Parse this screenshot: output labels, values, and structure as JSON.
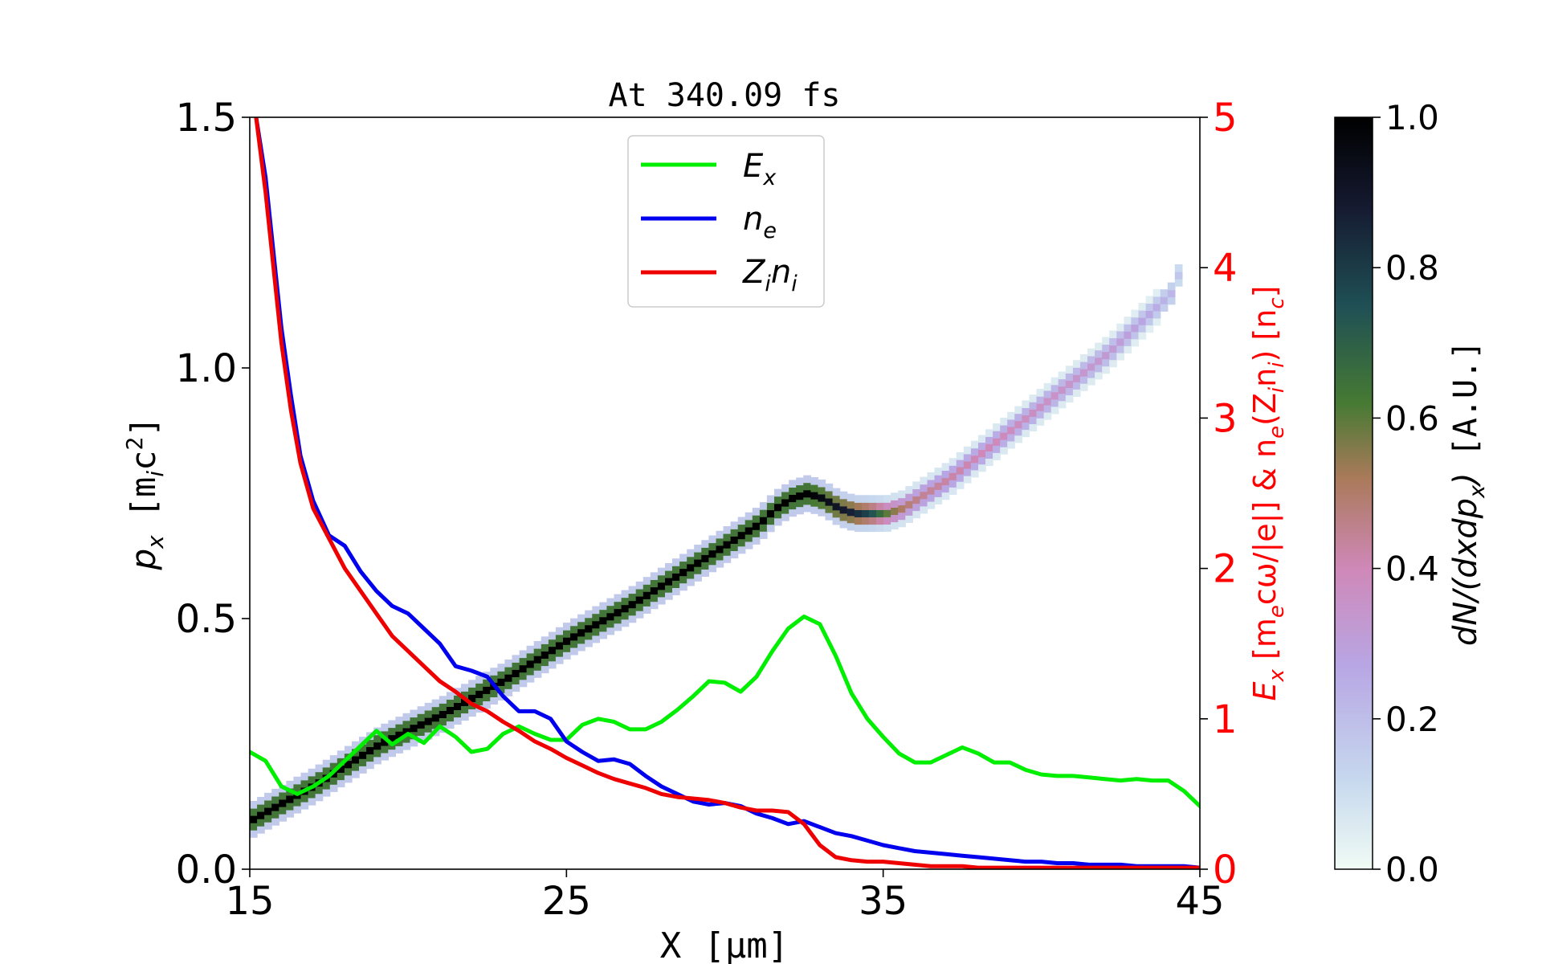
{
  "chart_data": {
    "type": "heatmap",
    "title": "At 340.09 fs",
    "xlabel": "X",
    "xlabel_unit": "[μm]",
    "ylabel": "p",
    "ylabel_sub": "x",
    "ylabel_unit": "[m",
    "ylabel_unit_sub": "i",
    "ylabel_unit_end": "c",
    "ylabel_unit_sup": "2",
    "ylabel_unit_close": "]",
    "y2label": "E_x [m_e cω/|e|] & n_e(Z_i n_i) [n_c]",
    "y2label_parts": [
      "E",
      "x",
      " [m",
      "e",
      "cω/|e|]  &  n",
      "e",
      "(Z",
      "i",
      "n",
      "i",
      ")  [n",
      "c",
      "]"
    ],
    "colorbar_label_parts": [
      "dN/(dxdp",
      "x",
      ")",
      "[A.U.]"
    ],
    "xlim": [
      15,
      45
    ],
    "ylim": [
      0,
      1.5
    ],
    "y2lim": [
      0,
      5
    ],
    "clim": [
      0,
      1
    ],
    "xticks": [
      "15",
      "25",
      "35",
      "45"
    ],
    "xtick_values": [
      15,
      25,
      35,
      45
    ],
    "yticks": [
      "0.0",
      "0.5",
      "1.0",
      "1.5"
    ],
    "ytick_values": [
      0,
      0.5,
      1.0,
      1.5
    ],
    "y2ticks": [
      "0",
      "1",
      "2",
      "3",
      "4",
      "5"
    ],
    "y2tick_values": [
      0,
      1,
      2,
      3,
      4,
      5
    ],
    "cticks": [
      "0.0",
      "0.2",
      "0.4",
      "0.6",
      "0.8",
      "1.0"
    ],
    "ctick_values": [
      0,
      0.2,
      0.4,
      0.6,
      0.8,
      1.0
    ],
    "grid": false,
    "legend_position": "top-center",
    "colors": {
      "Ex": "#00ee00",
      "ne": "#0000ee",
      "Zini": "#ee0000",
      "right_axis": "#ff0000",
      "colormap": [
        "#f0fbf4",
        "#c6d8ee",
        "#b8a6e4",
        "#cf88b8",
        "#aa7a5a",
        "#467a33",
        "#1f4f55",
        "#151a30",
        "#000000"
      ]
    },
    "legend": [
      {
        "key": "Ex",
        "name": "E",
        "sub": "x"
      },
      {
        "key": "ne",
        "name": "n",
        "sub": "e"
      },
      {
        "key": "Zini",
        "name": "Z",
        "sub": "i",
        "name2": "n",
        "sub2": "i"
      }
    ],
    "series": [
      {
        "key": "Ex",
        "axis": "right",
        "x": [
          15,
          15.5,
          16,
          16.5,
          17,
          17.5,
          18,
          18.5,
          19,
          19.5,
          20,
          20.5,
          21,
          21.5,
          22,
          22.5,
          23,
          23.5,
          24,
          24.5,
          25,
          25.5,
          26,
          26.5,
          27,
          27.5,
          28,
          28.5,
          29,
          29.5,
          30,
          30.5,
          31,
          31.5,
          32,
          32.5,
          33,
          33.5,
          34,
          34.5,
          35,
          35.5,
          36,
          36.5,
          37,
          37.5,
          38,
          38.5,
          39,
          39.5,
          40,
          40.5,
          41,
          41.5,
          42,
          42.5,
          43,
          43.5,
          44,
          44.5,
          45
        ],
        "y": [
          0.78,
          0.72,
          0.55,
          0.5,
          0.55,
          0.62,
          0.72,
          0.82,
          0.92,
          0.83,
          0.9,
          0.84,
          0.95,
          0.88,
          0.78,
          0.8,
          0.9,
          0.95,
          0.9,
          0.86,
          0.86,
          0.96,
          1.0,
          0.98,
          0.93,
          0.93,
          0.98,
          1.06,
          1.15,
          1.25,
          1.24,
          1.18,
          1.28,
          1.45,
          1.6,
          1.68,
          1.63,
          1.42,
          1.17,
          1.0,
          0.88,
          0.77,
          0.71,
          0.71,
          0.76,
          0.81,
          0.77,
          0.71,
          0.71,
          0.66,
          0.63,
          0.62,
          0.62,
          0.61,
          0.6,
          0.59,
          0.6,
          0.59,
          0.59,
          0.52,
          0.42
        ]
      },
      {
        "key": "ne",
        "axis": "right",
        "x": [
          15.2,
          15.5,
          15.8,
          16,
          16.3,
          16.6,
          17,
          17.5,
          18,
          18.5,
          19,
          19.5,
          20,
          20.5,
          21,
          21.5,
          22,
          22.5,
          23,
          23.5,
          24,
          24.5,
          25,
          25.5,
          26,
          26.5,
          27,
          27.5,
          28,
          28.5,
          29,
          29.5,
          30,
          30.5,
          31,
          31.5,
          32,
          32.5,
          33,
          33.5,
          34,
          34.5,
          35,
          35.5,
          36,
          36.5,
          37,
          37.5,
          38,
          38.5,
          39,
          39.5,
          40,
          40.5,
          41,
          41.5,
          42,
          42.5,
          43,
          43.5,
          44,
          44.5,
          45
        ],
        "y": [
          5.0,
          4.6,
          4.0,
          3.6,
          3.15,
          2.75,
          2.45,
          2.22,
          2.15,
          1.98,
          1.85,
          1.75,
          1.7,
          1.6,
          1.5,
          1.35,
          1.32,
          1.28,
          1.15,
          1.05,
          1.05,
          1.0,
          0.85,
          0.78,
          0.72,
          0.73,
          0.7,
          0.62,
          0.55,
          0.5,
          0.45,
          0.43,
          0.44,
          0.42,
          0.37,
          0.34,
          0.3,
          0.32,
          0.28,
          0.24,
          0.22,
          0.19,
          0.16,
          0.14,
          0.12,
          0.11,
          0.1,
          0.09,
          0.08,
          0.07,
          0.06,
          0.05,
          0.05,
          0.04,
          0.04,
          0.03,
          0.03,
          0.03,
          0.02,
          0.02,
          0.02,
          0.02,
          0.01
        ]
      },
      {
        "key": "Zini",
        "axis": "right",
        "x": [
          15.2,
          15.5,
          15.8,
          16,
          16.3,
          16.6,
          17,
          17.5,
          18,
          18.5,
          19,
          19.5,
          20,
          20.5,
          21,
          21.5,
          22,
          22.5,
          23,
          23.5,
          24,
          24.5,
          25,
          25.5,
          26,
          26.5,
          27,
          27.5,
          28,
          28.5,
          29,
          29.5,
          30,
          30.5,
          31,
          31.5,
          32,
          32.5,
          33,
          33.5,
          34,
          34.5,
          35,
          35.5,
          36,
          36.5,
          37,
          37.5,
          38,
          38.5,
          39,
          39.5,
          40,
          41,
          42,
          43,
          44,
          45
        ],
        "y": [
          5.0,
          4.5,
          3.9,
          3.5,
          3.05,
          2.7,
          2.4,
          2.2,
          2.0,
          1.85,
          1.7,
          1.55,
          1.45,
          1.35,
          1.25,
          1.18,
          1.1,
          1.05,
          0.98,
          0.92,
          0.85,
          0.8,
          0.74,
          0.69,
          0.64,
          0.6,
          0.57,
          0.54,
          0.5,
          0.48,
          0.47,
          0.46,
          0.44,
          0.41,
          0.39,
          0.39,
          0.38,
          0.3,
          0.16,
          0.08,
          0.06,
          0.05,
          0.05,
          0.04,
          0.03,
          0.02,
          0.02,
          0.02,
          0.01,
          0.01,
          0.01,
          0.01,
          0.01,
          0.01,
          0.01,
          0.01,
          0.01,
          0.01
        ]
      }
    ],
    "heatmap_ridge": {
      "description_x": [
        15,
        17,
        19,
        21,
        23,
        25,
        27,
        29,
        31,
        31.5,
        32,
        32.5,
        33,
        33.5,
        34,
        34.5,
        35,
        35.5,
        36,
        37,
        38,
        39,
        40,
        41,
        42,
        43,
        44,
        44.3
      ],
      "p": [
        0.1,
        0.17,
        0.25,
        0.31,
        0.38,
        0.46,
        0.53,
        0.61,
        0.69,
        0.72,
        0.74,
        0.75,
        0.74,
        0.72,
        0.71,
        0.71,
        0.71,
        0.72,
        0.74,
        0.78,
        0.83,
        0.88,
        0.93,
        0.98,
        1.03,
        1.09,
        1.15,
        1.2
      ],
      "intensity": [
        1,
        1,
        1,
        1,
        1,
        1,
        1,
        1,
        1,
        1,
        1,
        1,
        0.95,
        0.9,
        0.85,
        0.75,
        0.6,
        0.5,
        0.45,
        0.42,
        0.4,
        0.38,
        0.36,
        0.34,
        0.32,
        0.28,
        0.22,
        0.15
      ]
    }
  }
}
